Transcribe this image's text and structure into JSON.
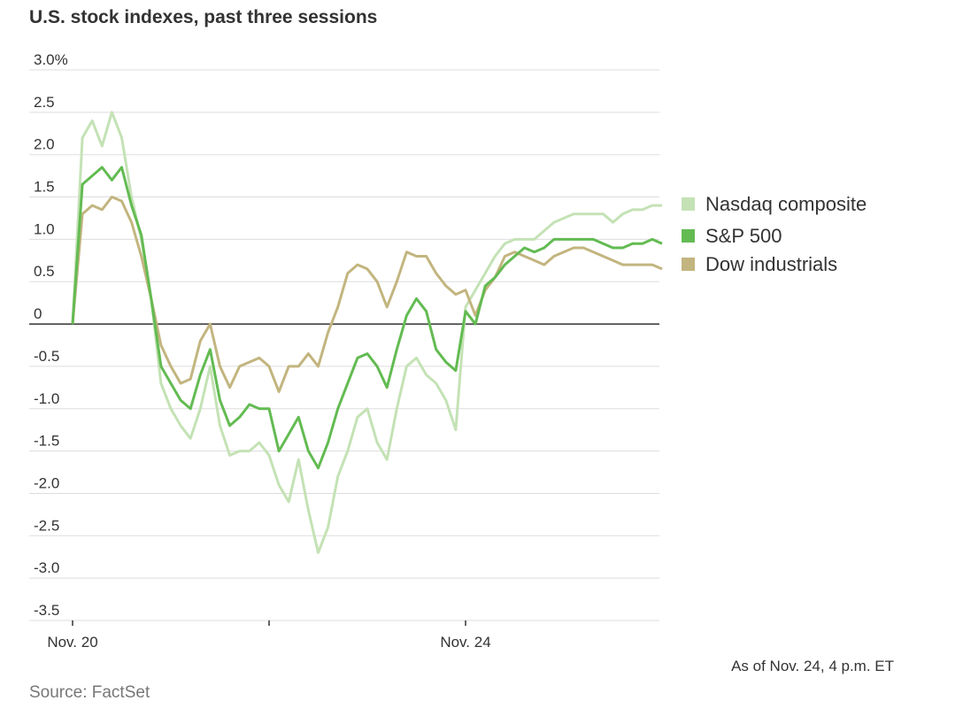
{
  "chart_data": {
    "type": "line",
    "title": "U.S. stock indexes, past three sessions",
    "source": "Source: FactSet",
    "note": "As of Nov. 24, 4 p.m. ET",
    "x": [
      0,
      0.05,
      0.1,
      0.15,
      0.2,
      0.25,
      0.3,
      0.35,
      0.4,
      0.45,
      0.5,
      0.55,
      0.6,
      0.65,
      0.7,
      0.75,
      0.8,
      0.85,
      0.9,
      0.95,
      1,
      1.05,
      1.1,
      1.15,
      1.2,
      1.25,
      1.3,
      1.35,
      1.4,
      1.45,
      1.5,
      1.55,
      1.6,
      1.65,
      1.7,
      1.75,
      1.8,
      1.85,
      1.9,
      1.95,
      2,
      2.05,
      2.1,
      2.15,
      2.2,
      2.25,
      2.3,
      2.35,
      2.4,
      2.45,
      2.5,
      2.55,
      2.6,
      2.65,
      2.7,
      2.75,
      2.8,
      2.85,
      2.9,
      2.95,
      3
    ],
    "xlim": [
      0,
      3
    ],
    "xticks": [
      {
        "value": 0,
        "label": "Nov. 20"
      },
      {
        "value": 1,
        "label": null
      },
      {
        "value": 2,
        "label": "Nov. 24"
      }
    ],
    "ylim": [
      -3.5,
      3
    ],
    "yticks": [
      {
        "value": 3,
        "label": "3.0%"
      },
      2.5,
      {
        "value": 2,
        "label": "2.0"
      },
      1.5,
      {
        "value": 1,
        "label": "1.0"
      },
      0.5,
      0,
      -0.5,
      {
        "value": -1,
        "label": "-1.0"
      },
      -1.5,
      {
        "value": -2,
        "label": "-2.0"
      },
      -2.5,
      {
        "value": -3,
        "label": "-3.0"
      },
      -3.5
    ],
    "grid": true,
    "legend": "right",
    "series": [
      {
        "name": "Nasdaq composite",
        "color": "#c4e2b5",
        "values": [
          0,
          2.2,
          2.4,
          2.1,
          2.5,
          2.2,
          1.5,
          1.0,
          0.3,
          -0.7,
          -1.0,
          -1.2,
          -1.35,
          -1.0,
          -0.5,
          -1.2,
          -1.55,
          -1.5,
          -1.5,
          -1.4,
          -1.55,
          -1.9,
          -2.1,
          -1.6,
          -2.2,
          -2.7,
          -2.4,
          -1.8,
          -1.5,
          -1.1,
          -1.0,
          -1.4,
          -1.6,
          -1.0,
          -0.5,
          -0.4,
          -0.6,
          -0.7,
          -0.9,
          -1.25,
          0.2,
          0.4,
          0.6,
          0.8,
          0.95,
          1.0,
          1.0,
          1.0,
          1.1,
          1.2,
          1.25,
          1.3,
          1.3,
          1.3,
          1.3,
          1.2,
          1.3,
          1.35,
          1.35,
          1.4,
          1.4
        ]
      },
      {
        "name": "S&P 500",
        "color": "#63bb52",
        "values": [
          0,
          1.65,
          1.75,
          1.85,
          1.7,
          1.85,
          1.4,
          1.05,
          0.3,
          -0.5,
          -0.7,
          -0.9,
          -1.0,
          -0.6,
          -0.3,
          -0.9,
          -1.2,
          -1.1,
          -0.95,
          -1.0,
          -1.0,
          -1.5,
          -1.3,
          -1.1,
          -1.5,
          -1.7,
          -1.4,
          -1.0,
          -0.7,
          -0.4,
          -0.35,
          -0.5,
          -0.75,
          -0.3,
          0.1,
          0.3,
          0.15,
          -0.3,
          -0.45,
          -0.55,
          0.15,
          0.0,
          0.45,
          0.55,
          0.7,
          0.8,
          0.9,
          0.85,
          0.9,
          1.0,
          1.0,
          1.0,
          1.0,
          1.0,
          0.95,
          0.9,
          0.9,
          0.95,
          0.95,
          1.0,
          0.95
        ]
      },
      {
        "name": "Dow industrials",
        "color": "#c2b57f",
        "values": [
          0,
          1.3,
          1.4,
          1.35,
          1.5,
          1.45,
          1.2,
          0.8,
          0.3,
          -0.25,
          -0.5,
          -0.7,
          -0.65,
          -0.2,
          0.0,
          -0.5,
          -0.75,
          -0.5,
          -0.45,
          -0.4,
          -0.5,
          -0.8,
          -0.5,
          -0.5,
          -0.35,
          -0.5,
          -0.1,
          0.2,
          0.6,
          0.7,
          0.65,
          0.5,
          0.2,
          0.5,
          0.85,
          0.8,
          0.8,
          0.6,
          0.45,
          0.35,
          0.4,
          0.1,
          0.4,
          0.55,
          0.8,
          0.85,
          0.8,
          0.75,
          0.7,
          0.8,
          0.85,
          0.9,
          0.9,
          0.85,
          0.8,
          0.75,
          0.7,
          0.7,
          0.7,
          0.7,
          0.65
        ]
      }
    ]
  }
}
